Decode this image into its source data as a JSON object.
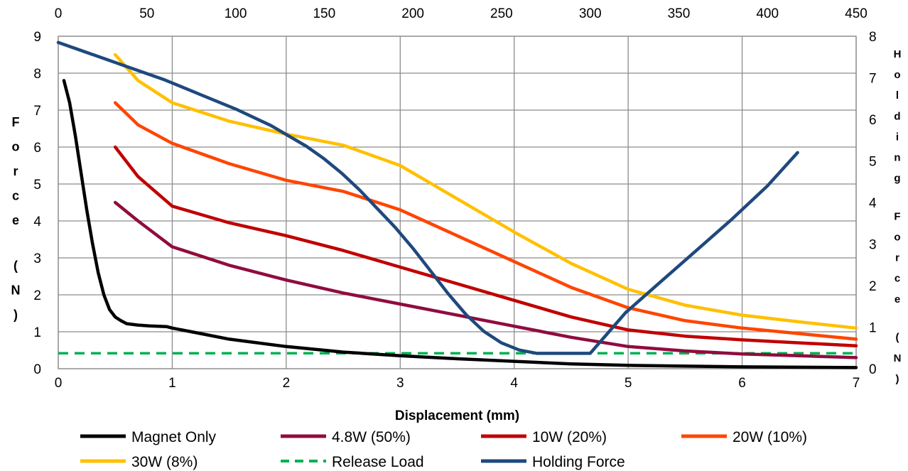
{
  "chart_data": {
    "type": "line",
    "xlabel": "Displacement (mm)",
    "ylabel": "Force (N)",
    "y2label": "Holding Force (N)",
    "xlim": [
      0,
      7
    ],
    "ylim": [
      0,
      9
    ],
    "x2lim": [
      0,
      450
    ],
    "y2lim": [
      0,
      8
    ],
    "x_ticks": [
      "0",
      "1",
      "2",
      "3",
      "4",
      "5",
      "6",
      "7"
    ],
    "y_ticks": [
      "0",
      "1",
      "2",
      "3",
      "4",
      "5",
      "6",
      "7",
      "8",
      "9"
    ],
    "x2_ticks": [
      "0",
      "50",
      "100",
      "150",
      "200",
      "250",
      "300",
      "350",
      "400",
      "450"
    ],
    "y2_ticks": [
      "0",
      "1",
      "2",
      "3",
      "4",
      "5",
      "6",
      "7",
      "8"
    ],
    "grid": true,
    "legend_position": "bottom",
    "series": [
      {
        "name": "Magnet Only",
        "color": "#000000",
        "dash": "solid",
        "axis": "primary",
        "x": [
          0.05,
          0.1,
          0.15,
          0.2,
          0.25,
          0.3,
          0.35,
          0.4,
          0.45,
          0.5,
          0.55,
          0.6,
          0.7,
          0.8,
          0.95,
          1.0,
          1.2,
          1.5,
          2.0,
          2.5,
          3.0,
          3.5,
          4.0,
          4.5,
          5.0,
          5.5,
          6.0,
          6.5,
          7.0
        ],
        "y": [
          7.8,
          7.2,
          6.3,
          5.3,
          4.3,
          3.4,
          2.6,
          2.0,
          1.6,
          1.4,
          1.3,
          1.22,
          1.18,
          1.16,
          1.14,
          1.1,
          0.98,
          0.8,
          0.6,
          0.45,
          0.35,
          0.27,
          0.2,
          0.13,
          0.09,
          0.07,
          0.05,
          0.04,
          0.03
        ]
      },
      {
        "name": "4.8W (50%)",
        "color": "#900c3e",
        "dash": "solid",
        "axis": "primary",
        "x": [
          0.5,
          0.7,
          1.0,
          1.5,
          2.0,
          2.5,
          3.0,
          3.5,
          4.0,
          4.5,
          5.0,
          5.5,
          6.0,
          6.5,
          7.0
        ],
        "y": [
          4.5,
          4.0,
          3.3,
          2.8,
          2.4,
          2.05,
          1.75,
          1.45,
          1.15,
          0.85,
          0.6,
          0.48,
          0.4,
          0.35,
          0.3
        ]
      },
      {
        "name": "10W (20%)",
        "color": "#c00000",
        "dash": "solid",
        "axis": "primary",
        "x": [
          0.5,
          0.7,
          1.0,
          1.5,
          2.0,
          2.5,
          3.0,
          3.5,
          4.0,
          4.5,
          5.0,
          5.5,
          6.0,
          6.5,
          7.0
        ],
        "y": [
          6.0,
          5.2,
          4.4,
          3.95,
          3.6,
          3.2,
          2.75,
          2.3,
          1.85,
          1.4,
          1.05,
          0.88,
          0.78,
          0.7,
          0.62
        ]
      },
      {
        "name": "20W (10%)",
        "color": "#ff4500",
        "dash": "solid",
        "axis": "primary",
        "x": [
          0.5,
          0.7,
          1.0,
          1.5,
          2.0,
          2.5,
          3.0,
          3.5,
          4.0,
          4.5,
          5.0,
          5.5,
          6.0,
          6.5,
          7.0
        ],
        "y": [
          7.2,
          6.6,
          6.1,
          5.55,
          5.1,
          4.8,
          4.3,
          3.6,
          2.9,
          2.2,
          1.65,
          1.3,
          1.1,
          0.95,
          0.8
        ]
      },
      {
        "name": "30W (8%)",
        "color": "#ffc000",
        "dash": "solid",
        "axis": "primary",
        "x": [
          0.5,
          0.7,
          1.0,
          1.5,
          2.0,
          2.5,
          3.0,
          3.5,
          4.0,
          4.5,
          5.0,
          5.5,
          6.0,
          6.5,
          7.0
        ],
        "y": [
          8.5,
          7.8,
          7.2,
          6.7,
          6.35,
          6.05,
          5.5,
          4.6,
          3.7,
          2.85,
          2.15,
          1.72,
          1.45,
          1.27,
          1.1
        ]
      },
      {
        "name": "Release Load",
        "color": "#00b050",
        "dash": "dashed",
        "axis": "primary",
        "x": [
          0,
          7.0
        ],
        "y": [
          0.42,
          0.42
        ]
      },
      {
        "name": "Holding Force",
        "color": "#1f497d",
        "dash": "solid",
        "axis": "secondary",
        "x": [
          0,
          20,
          40,
          60,
          80,
          100,
          120,
          140,
          150,
          160,
          170,
          180,
          190,
          200,
          210,
          220,
          230,
          240,
          250,
          260,
          270,
          280,
          290,
          300,
          320,
          340,
          360,
          380,
          400,
          417
        ],
        "y": [
          7.85,
          7.55,
          7.25,
          6.95,
          6.6,
          6.25,
          5.85,
          5.35,
          5.05,
          4.7,
          4.3,
          3.85,
          3.4,
          2.9,
          2.35,
          1.8,
          1.3,
          0.9,
          0.62,
          0.45,
          0.37,
          0.37,
          0.37,
          0.37,
          1.35,
          2.1,
          2.85,
          3.6,
          4.4,
          5.2
        ]
      }
    ]
  }
}
